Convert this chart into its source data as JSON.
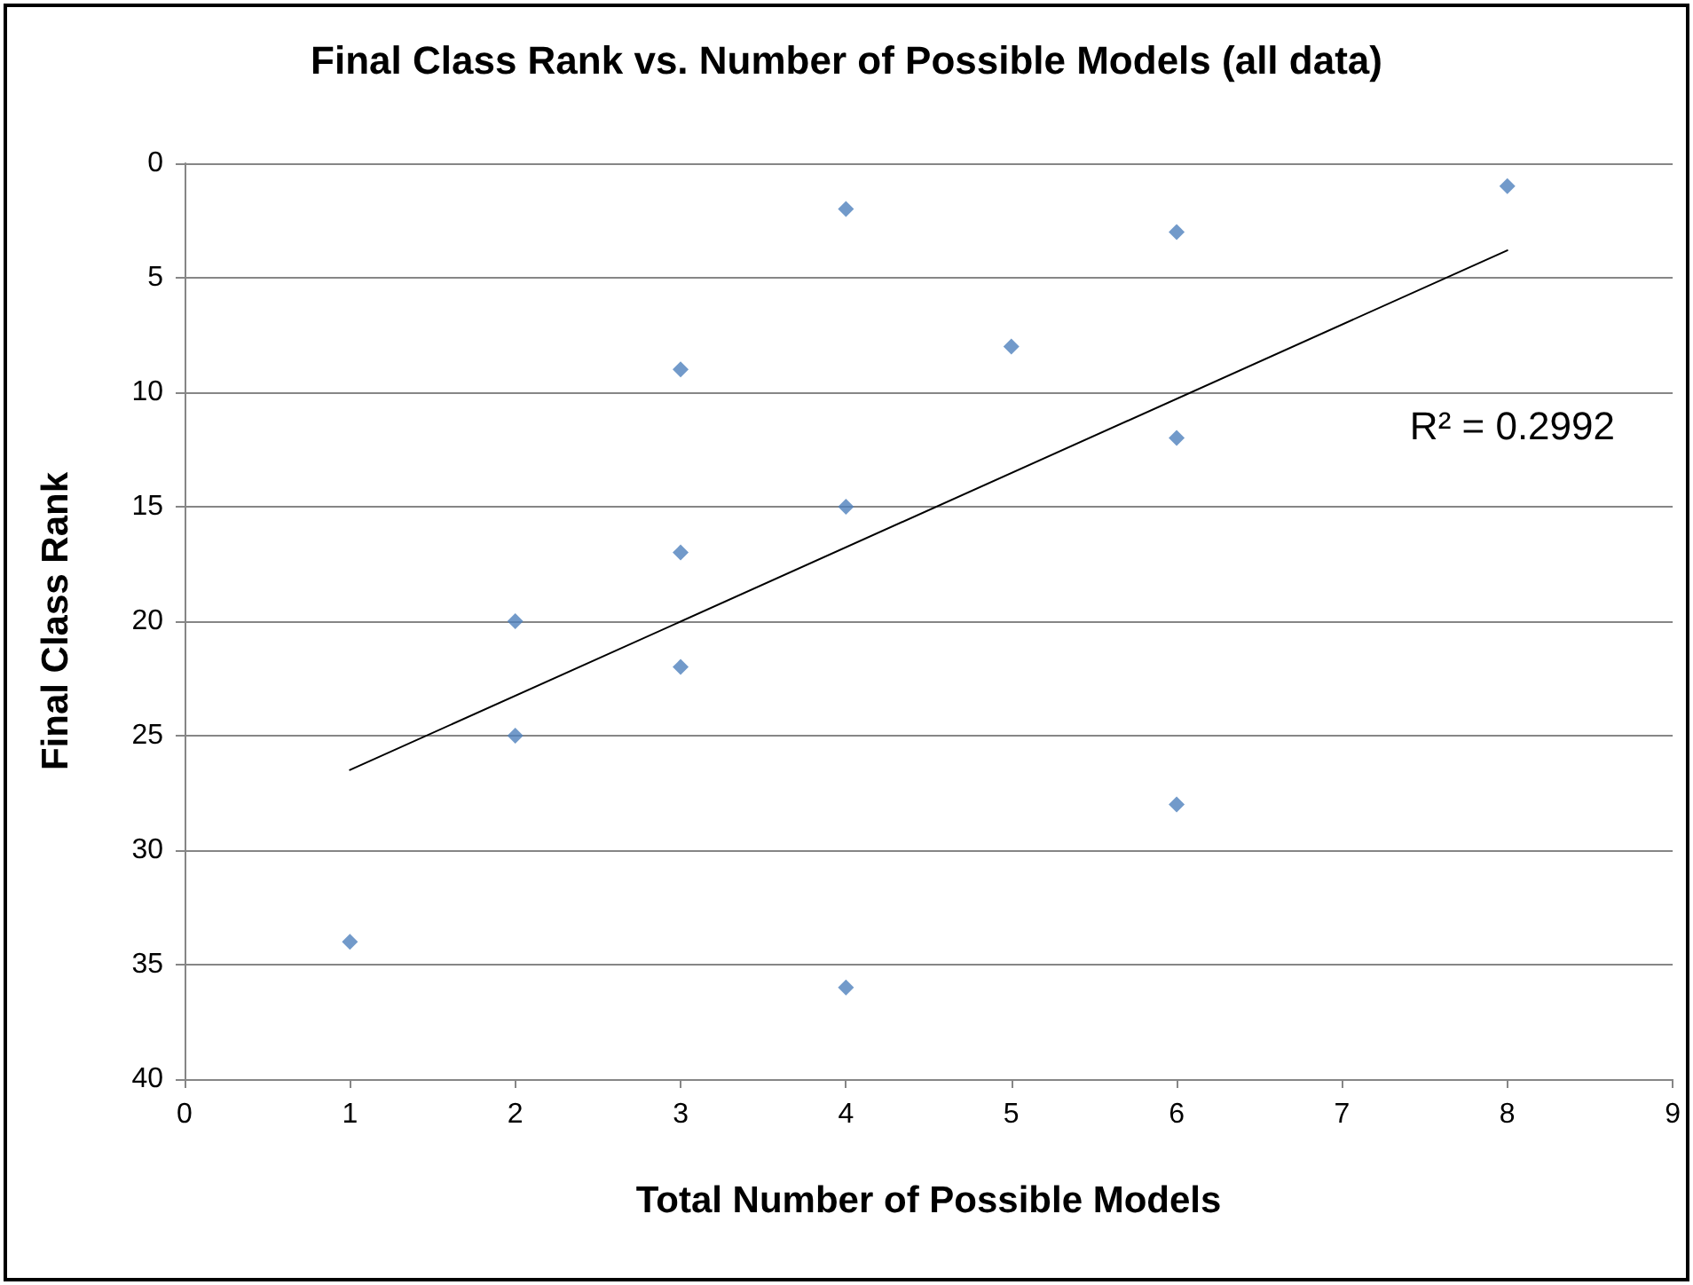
{
  "chart_data": {
    "type": "scatter",
    "title": "Final Class Rank vs. Number of Possible Models (all data)",
    "xlabel": "Total Number of Possible Models",
    "ylabel": "Final Class Rank",
    "x": [
      1,
      2,
      2,
      3,
      3,
      3,
      4,
      4,
      4,
      5,
      6,
      6,
      6,
      8
    ],
    "series": [
      {
        "color": "#4f81bd",
        "marker": "diamond",
        "values": [
          34,
          20,
          25,
          9,
          17,
          22,
          2,
          15,
          36,
          8,
          3,
          12,
          28,
          1
        ]
      },
      {
        "type": "line",
        "color": "#000000",
        "marker": "none",
        "line_style": "solid",
        "x": [
          1,
          8
        ],
        "values": [
          26.5,
          3.8
        ]
      }
    ],
    "annotations": [
      "R² = 0.2992"
    ],
    "xlim": [
      0,
      9
    ],
    "xticks": [
      0,
      1,
      2,
      3,
      4,
      5,
      6,
      7,
      8,
      9
    ],
    "ylim": [
      40,
      0
    ],
    "yticks": [
      0,
      5,
      10,
      15,
      20,
      25,
      30,
      35,
      40
    ],
    "grid": "y"
  }
}
